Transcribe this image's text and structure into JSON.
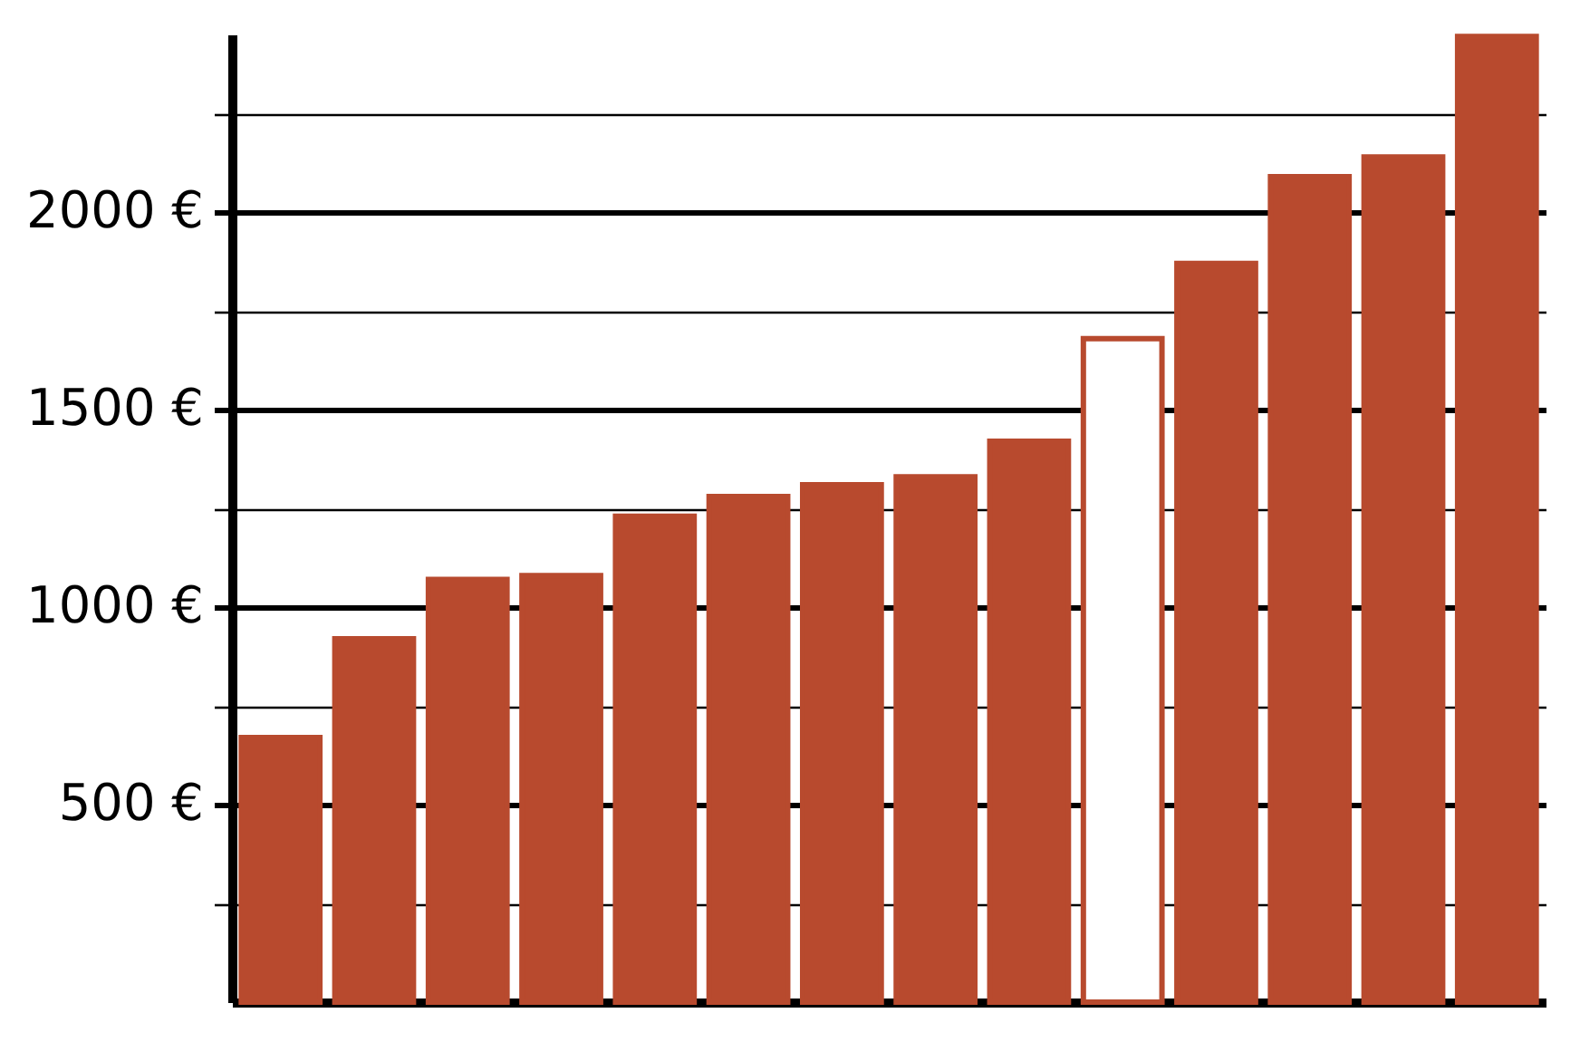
{
  "chart_data": {
    "type": "bar",
    "categories": [
      null,
      null,
      null,
      null,
      null,
      null,
      null,
      null,
      null,
      null,
      null,
      null,
      null,
      null
    ],
    "series": [
      {
        "color": "#b84a2e",
        "values": [
          670,
          920,
          1070,
          1080,
          1230,
          1280,
          1310,
          1330,
          1420,
          1680,
          1870,
          2090,
          2140,
          2445
        ],
        "colors": [
          "#b84a2e",
          "#b84a2e",
          "#b84a2e",
          "#b84a2e",
          "#b84a2e",
          "#b84a2e",
          "#b84a2e",
          "#b84a2e",
          "#b84a2e",
          "#ffffff",
          "#b84a2e",
          "#b84a2e",
          "#b84a2e",
          "#b84a2e"
        ]
      }
    ],
    "ylim": [
      0,
      2450
    ],
    "yticks": [
      {
        "value": 250,
        "label": null
      },
      {
        "value": 500,
        "label": "500 €"
      },
      {
        "value": 750,
        "label": null
      },
      {
        "value": 1000,
        "label": "1000 €"
      },
      {
        "value": 1250,
        "label": null
      },
      {
        "value": 1500,
        "label": "1500 €"
      },
      {
        "value": 1750,
        "label": null
      },
      {
        "value": 2000,
        "label": "2000 €"
      },
      {
        "value": 2250,
        "label": null
      }
    ],
    "grid": true
  }
}
